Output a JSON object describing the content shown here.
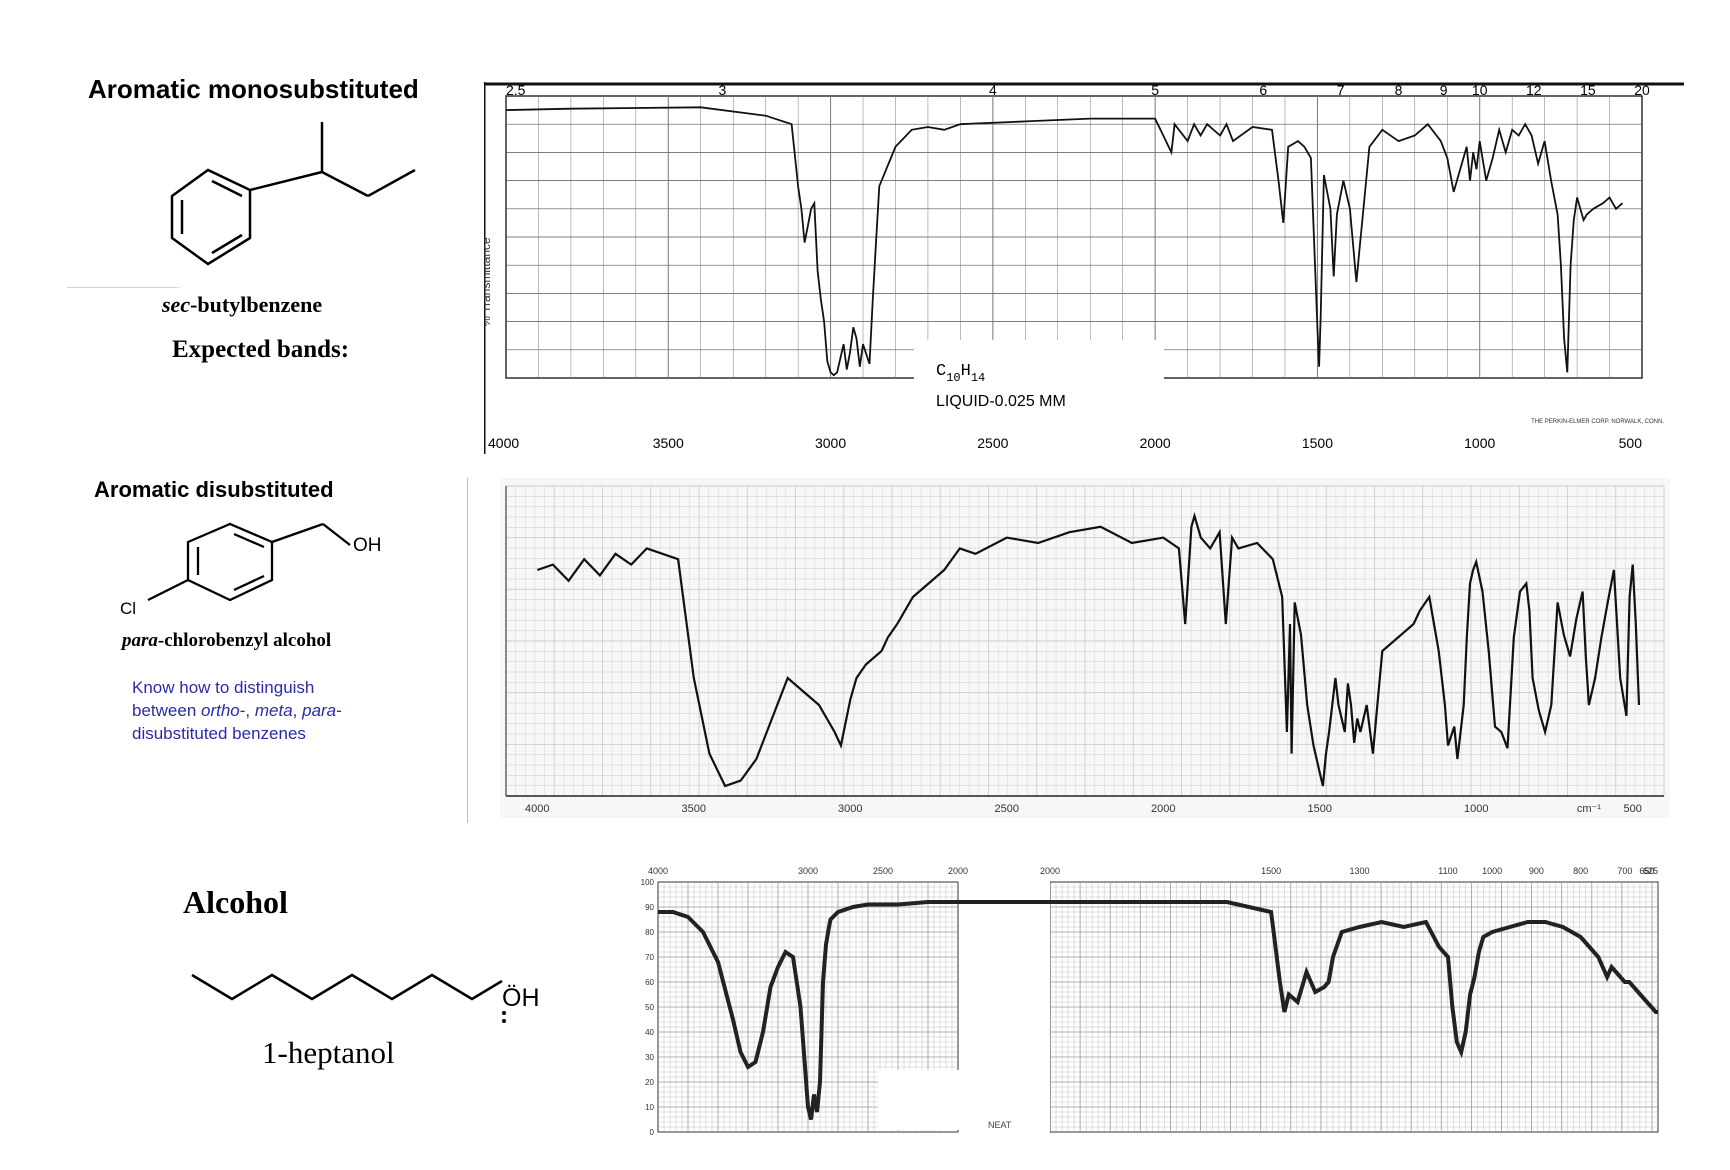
{
  "section1": {
    "heading": "Aromatic monosubstituted",
    "compound": "sec-butylbenzene",
    "compound_prefix": "sec",
    "compound_rest": "-butylbenzene",
    "subheading": "Expected bands:"
  },
  "section2": {
    "heading": "Aromatic disubstituted",
    "oh_label": "OH",
    "cl_label": "Cl",
    "compound_prefix": "para",
    "compound_rest": "-chlorobenzyl alcohol",
    "note_line1": "Know how to distinguish",
    "note_line2_a": "between ",
    "note_line2_b": "ortho",
    "note_line2_c": "-, ",
    "note_line2_d": "meta",
    "note_line2_e": ", ",
    "note_line2_f": "para",
    "note_line2_g": "-",
    "note_line3": "disubstituted benzenes"
  },
  "section3": {
    "heading": "Alcohol",
    "oh_label": "ÖH",
    "compound": "1-heptanol"
  },
  "chart_data": [
    {
      "type": "line",
      "name": "sec-butylbenzene IR spectrum",
      "x_unit": "cm-1",
      "xlim": [
        4000,
        500
      ],
      "ylim": [
        0,
        100
      ],
      "wavenumber_ticks": [
        "4000",
        "3500",
        "3000",
        "2500",
        "2000",
        "1500",
        "1000",
        "500"
      ],
      "micron_ticks": [
        "2.5",
        "3",
        "4",
        "5",
        "6",
        "7",
        "8",
        "9",
        "10",
        "12",
        "15",
        "20"
      ],
      "ylabel": "% Transmittance",
      "annotation_formula_main": "C",
      "annotation_formula_sub1": "10",
      "annotation_formula_h": "H",
      "annotation_formula_sub2": "14",
      "annotation_sample": "LIQUID-0.025 MM",
      "footer": "THE PERKIN-ELMER CORP. NORWALK, CONN.",
      "x": [
        4000,
        3800,
        3400,
        3200,
        3120,
        3100,
        3090,
        3080,
        3070,
        3060,
        3050,
        3040,
        3030,
        3020,
        3010,
        3000,
        2990,
        2980,
        2960,
        2950,
        2940,
        2930,
        2920,
        2910,
        2900,
        2880,
        2870,
        2860,
        2850,
        2800,
        2750,
        2700,
        2650,
        2600,
        2400,
        2200,
        2000,
        1950,
        1940,
        1900,
        1880,
        1860,
        1840,
        1800,
        1780,
        1760,
        1700,
        1640,
        1620,
        1605,
        1590,
        1560,
        1540,
        1520,
        1500,
        1495,
        1490,
        1480,
        1460,
        1450,
        1440,
        1420,
        1400,
        1380,
        1370,
        1360,
        1340,
        1300,
        1250,
        1200,
        1160,
        1120,
        1100,
        1080,
        1060,
        1040,
        1030,
        1020,
        1010,
        1000,
        980,
        960,
        940,
        920,
        900,
        880,
        860,
        840,
        820,
        800,
        780,
        760,
        750,
        740,
        730,
        720,
        710,
        700,
        690,
        680,
        670,
        650,
        620,
        600,
        580,
        560
      ],
      "y": [
        95,
        95.5,
        96,
        93,
        90,
        68,
        60,
        48,
        54,
        60,
        62,
        38,
        28,
        20,
        6,
        2,
        1,
        2,
        12,
        3,
        9,
        18,
        14,
        4,
        12,
        5,
        28,
        48,
        68,
        82,
        88,
        89,
        88,
        90,
        91,
        92,
        92,
        80,
        90,
        84,
        90,
        86,
        90,
        86,
        90,
        84,
        89,
        88,
        70,
        55,
        82,
        84,
        82,
        78,
        18,
        4,
        22,
        72,
        60,
        36,
        58,
        70,
        60,
        34,
        46,
        58,
        82,
        88,
        84,
        86,
        90,
        84,
        78,
        66,
        74,
        82,
        70,
        80,
        74,
        84,
        70,
        78,
        88,
        80,
        88,
        86,
        90,
        86,
        76,
        84,
        70,
        58,
        40,
        14,
        2,
        40,
        56,
        64,
        60,
        56,
        58,
        60,
        62,
        64,
        60,
        62
      ]
    },
    {
      "type": "line",
      "name": "para-chlorobenzyl alcohol IR spectrum",
      "x_unit": "cm-1",
      "xlim": [
        4000,
        500
      ],
      "ylim": [
        0,
        100
      ],
      "tick_labels": [
        "4000",
        "3500",
        "3000",
        "2500",
        "2000",
        "1500",
        "1000",
        "cm⁻¹",
        "500"
      ],
      "x": [
        4000,
        3950,
        3900,
        3850,
        3800,
        3750,
        3700,
        3650,
        3600,
        3550,
        3500,
        3450,
        3400,
        3350,
        3300,
        3250,
        3200,
        3150,
        3100,
        3050,
        3030,
        3000,
        2980,
        2950,
        2900,
        2880,
        2850,
        2800,
        2700,
        2650,
        2600,
        2500,
        2400,
        2300,
        2200,
        2100,
        2000,
        1950,
        1930,
        1910,
        1900,
        1880,
        1850,
        1820,
        1800,
        1780,
        1760,
        1700,
        1650,
        1620,
        1605,
        1595,
        1590,
        1580,
        1560,
        1540,
        1520,
        1500,
        1490,
        1480,
        1470,
        1450,
        1440,
        1420,
        1410,
        1400,
        1390,
        1380,
        1370,
        1350,
        1330,
        1300,
        1250,
        1200,
        1180,
        1150,
        1120,
        1100,
        1090,
        1070,
        1060,
        1050,
        1040,
        1030,
        1020,
        1010,
        1000,
        980,
        960,
        940,
        920,
        900,
        880,
        860,
        840,
        830,
        820,
        800,
        780,
        760,
        740,
        720,
        700,
        680,
        660,
        650,
        640,
        620,
        600,
        580,
        560,
        540,
        520,
        510,
        500,
        490,
        480
      ],
      "y": [
        80,
        82,
        76,
        84,
        78,
        86,
        82,
        88,
        86,
        84,
        40,
        12,
        0,
        2,
        10,
        25,
        40,
        35,
        30,
        20,
        15,
        32,
        40,
        45,
        50,
        55,
        60,
        70,
        80,
        88,
        86,
        92,
        90,
        94,
        96,
        90,
        92,
        88,
        60,
        96,
        100,
        92,
        88,
        94,
        60,
        92,
        88,
        90,
        84,
        70,
        20,
        60,
        12,
        68,
        56,
        30,
        15,
        5,
        0,
        12,
        20,
        40,
        30,
        20,
        38,
        30,
        16,
        25,
        20,
        30,
        12,
        50,
        55,
        60,
        65,
        70,
        50,
        30,
        15,
        22,
        10,
        20,
        30,
        55,
        75,
        80,
        83,
        72,
        50,
        22,
        20,
        14,
        55,
        72,
        75,
        65,
        40,
        28,
        20,
        30,
        68,
        56,
        48,
        62,
        72,
        48,
        30,
        40,
        55,
        68,
        80,
        40,
        26,
        70,
        82,
        60,
        30
      ]
    },
    {
      "type": "line",
      "name": "1-heptanol IR spectrum",
      "x_unit": "cm-1",
      "ylim": [
        0,
        100
      ],
      "y_ticks": [
        "0",
        "10",
        "20",
        "30",
        "40",
        "50",
        "60",
        "70",
        "80",
        "90",
        "100"
      ],
      "left_panel_ticks": [
        "4000",
        "3000",
        "2500",
        "2000"
      ],
      "right_panel_ticks": [
        "2000",
        "1500",
        "1300",
        "1100",
        "1000",
        "900",
        "800",
        "700",
        "650",
        "625"
      ],
      "annotation_sample": "NEAT",
      "x": [
        4000,
        3900,
        3800,
        3700,
        3600,
        3500,
        3450,
        3400,
        3350,
        3300,
        3250,
        3200,
        3150,
        3100,
        3050,
        3000,
        2980,
        2960,
        2940,
        2920,
        2900,
        2880,
        2860,
        2850,
        2800,
        2700,
        2600,
        2500,
        2400,
        2200,
        2000,
        1800,
        1600,
        1500,
        1480,
        1470,
        1460,
        1440,
        1420,
        1400,
        1380,
        1370,
        1360,
        1340,
        1300,
        1250,
        1200,
        1150,
        1120,
        1100,
        1090,
        1080,
        1070,
        1060,
        1050,
        1040,
        1030,
        1020,
        1000,
        960,
        920,
        880,
        840,
        800,
        760,
        740,
        730,
        720,
        710,
        700,
        690,
        680,
        670,
        660,
        650,
        640,
        630,
        625
      ],
      "y": [
        88,
        88,
        86,
        80,
        68,
        45,
        32,
        26,
        28,
        40,
        58,
        66,
        72,
        70,
        50,
        10,
        5,
        15,
        8,
        20,
        60,
        75,
        82,
        85,
        88,
        90,
        91,
        91,
        91,
        92,
        92,
        92,
        92,
        88,
        60,
        48,
        55,
        52,
        64,
        56,
        58,
        60,
        70,
        80,
        82,
        84,
        82,
        84,
        74,
        70,
        50,
        36,
        32,
        40,
        55,
        62,
        72,
        78,
        80,
        82,
        84,
        84,
        82,
        78,
        70,
        62,
        66,
        64,
        62,
        60,
        60,
        58,
        56,
        54,
        52,
        50,
        48,
        48
      ]
    }
  ]
}
